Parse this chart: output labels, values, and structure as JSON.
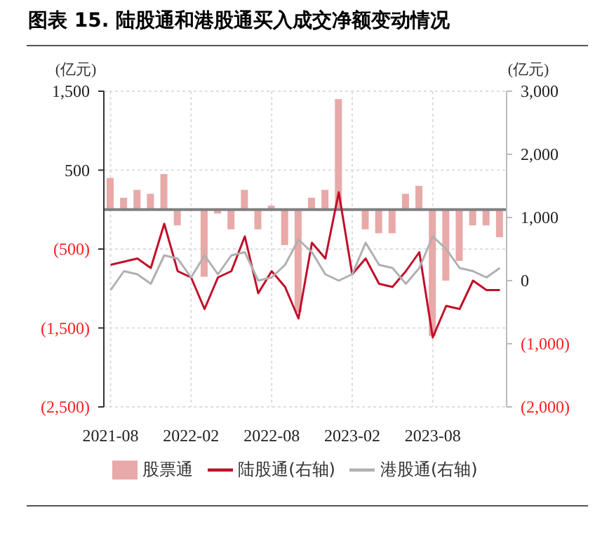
{
  "chart_data": {
    "type": "bar",
    "title": "图表 15. 陆股通和港股通买入成交净额变动情况",
    "ylabel": "(亿元)",
    "y2label": "(亿元)",
    "categories": [
      "2021-08",
      null,
      null,
      null,
      null,
      null,
      "2022-02",
      null,
      null,
      null,
      null,
      null,
      "2022-08",
      null,
      null,
      null,
      null,
      null,
      "2023-02",
      null,
      null,
      null,
      null,
      null,
      "2023-08",
      null,
      null,
      null,
      null,
      null
    ],
    "series": [
      {
        "name": "股票通",
        "color": "#e8a9a9",
        "values": [
          400,
          150,
          250,
          200,
          450,
          -200,
          0,
          -850,
          -50,
          -250,
          250,
          -250,
          50,
          -450,
          -1300,
          150,
          250,
          1400,
          0,
          -250,
          -300,
          -300,
          200,
          300,
          -1600,
          -900,
          -650,
          -200,
          -200,
          -350
        ]
      },
      {
        "name": "陆股通(右轴)",
        "type": "line",
        "axis": "y2",
        "color": "#c0102a",
        "values": [
          250,
          300,
          350,
          200,
          900,
          150,
          50,
          -450,
          50,
          150,
          700,
          -200,
          150,
          -100,
          -600,
          600,
          350,
          1400,
          100,
          350,
          -50,
          -100,
          150,
          450,
          -900,
          -400,
          -450,
          0,
          -150,
          -150
        ]
      },
      {
        "name": "港股通(右轴)",
        "type": "line",
        "axis": "y2",
        "color": "#b0b0b0",
        "values": [
          -150,
          150,
          100,
          -50,
          400,
          350,
          50,
          400,
          100,
          400,
          450,
          0,
          50,
          250,
          650,
          450,
          100,
          0,
          100,
          600,
          250,
          200,
          -50,
          200,
          700,
          500,
          200,
          150,
          50,
          200
        ]
      }
    ],
    "ylim": [
      -2500,
      1500
    ],
    "yticks": [
      {
        "value": -2500,
        "label": "(2,500)"
      },
      {
        "value": -1500,
        "label": "(1,500)"
      },
      {
        "value": -500,
        "label": "(500)"
      },
      {
        "value": 500,
        "label": "500"
      },
      {
        "value": 1500,
        "label": "1,500"
      }
    ],
    "y2lim": [
      -2000,
      3000
    ],
    "y2ticks": [
      {
        "value": -2000,
        "label": "(2,000)"
      },
      {
        "value": -1000,
        "label": "(1,000)"
      },
      0,
      {
        "value": 1000,
        "label": "1,000"
      },
      {
        "value": 2000,
        "label": "2,000"
      },
      {
        "value": 3000,
        "label": "3,000"
      }
    ],
    "ref_lines": [
      {
        "axis": "y",
        "value": 0,
        "color": "#808080"
      }
    ],
    "grid": true,
    "legend": "bottom",
    "marker": "none",
    "line_style": "solid"
  }
}
